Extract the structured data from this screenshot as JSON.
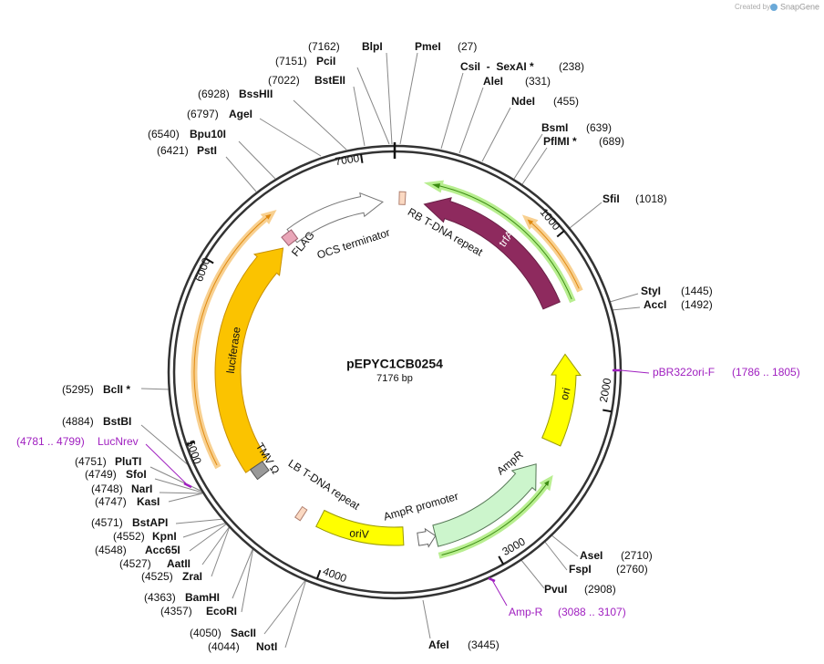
{
  "header": {
    "credit": "Created by",
    "brand": "SnapGene"
  },
  "plasmid": {
    "name": "pEPYC1CB0254",
    "length": "7176 bp"
  },
  "ticks": [
    "1000",
    "2000",
    "3000",
    "4000",
    "5000",
    "6000",
    "7000"
  ],
  "sites": [
    {
      "name": "BlpI",
      "position": "(7162)"
    },
    {
      "name": "PciI",
      "position": "(7151)"
    },
    {
      "name": "BstEII",
      "position": "(7022)"
    },
    {
      "name": "BssHII",
      "position": "(6928)"
    },
    {
      "name": "AgeI",
      "position": "(6797)"
    },
    {
      "name": "Bpu10I",
      "position": "(6540)"
    },
    {
      "name": "PstI",
      "position": "(6421)"
    },
    {
      "name": "PmeI",
      "position": "(27)"
    },
    {
      "name": "CsiI  -  SexAI *",
      "position": "(238)"
    },
    {
      "name": "AleI",
      "position": "(331)"
    },
    {
      "name": "NdeI",
      "position": "(455)"
    },
    {
      "name": "BsmI",
      "position": "(639)"
    },
    {
      "name": "PflMI *",
      "position": "(689)"
    },
    {
      "name": "SfiI",
      "position": "(1018)"
    },
    {
      "name": "StyI",
      "position": "(1445)"
    },
    {
      "name": "AccI",
      "position": "(1492)"
    },
    {
      "name": "BclI *",
      "position": "(5295)"
    },
    {
      "name": "BstBI",
      "position": "(4884)"
    },
    {
      "name": "PluTI",
      "position": "(4751)"
    },
    {
      "name": "SfoI",
      "position": "(4749)"
    },
    {
      "name": "NarI",
      "position": "(4748)"
    },
    {
      "name": "KasI",
      "position": "(4747)"
    },
    {
      "name": "BstAPI",
      "position": "(4571)"
    },
    {
      "name": "KpnI",
      "position": "(4552)"
    },
    {
      "name": "Acc65I",
      "position": "(4548)"
    },
    {
      "name": "AatII",
      "position": "(4527)"
    },
    {
      "name": "ZraI",
      "position": "(4525)"
    },
    {
      "name": "BamHI",
      "position": "(4363)"
    },
    {
      "name": "EcoRI",
      "position": "(4357)"
    },
    {
      "name": "SacII",
      "position": "(4050)"
    },
    {
      "name": "NotI",
      "position": "(4044)"
    },
    {
      "name": "AfeI",
      "position": "(3445)"
    },
    {
      "name": "AseI",
      "position": "(2710)"
    },
    {
      "name": "FspI",
      "position": "(2760)"
    },
    {
      "name": "PvuI",
      "position": "(2908)"
    }
  ],
  "primers": [
    {
      "name": "pBR322ori-F",
      "range": "(1786 .. 1805)"
    },
    {
      "name": "LucNrev",
      "range": "(4781 .. 4799)"
    },
    {
      "name": "Amp-R",
      "range": "(3088 .. 3107)"
    }
  ],
  "features": [
    {
      "label": "trfA"
    },
    {
      "label": "RB T-DNA repeat"
    },
    {
      "label": "OCS terminator"
    },
    {
      "label": "FLAG"
    },
    {
      "label": "luciferase"
    },
    {
      "label": "TMV Ω"
    },
    {
      "label": "LB T-DNA repeat"
    },
    {
      "label": "oriV"
    },
    {
      "label": "AmpR promoter"
    },
    {
      "label": "AmpR"
    },
    {
      "label": "ori"
    }
  ]
}
